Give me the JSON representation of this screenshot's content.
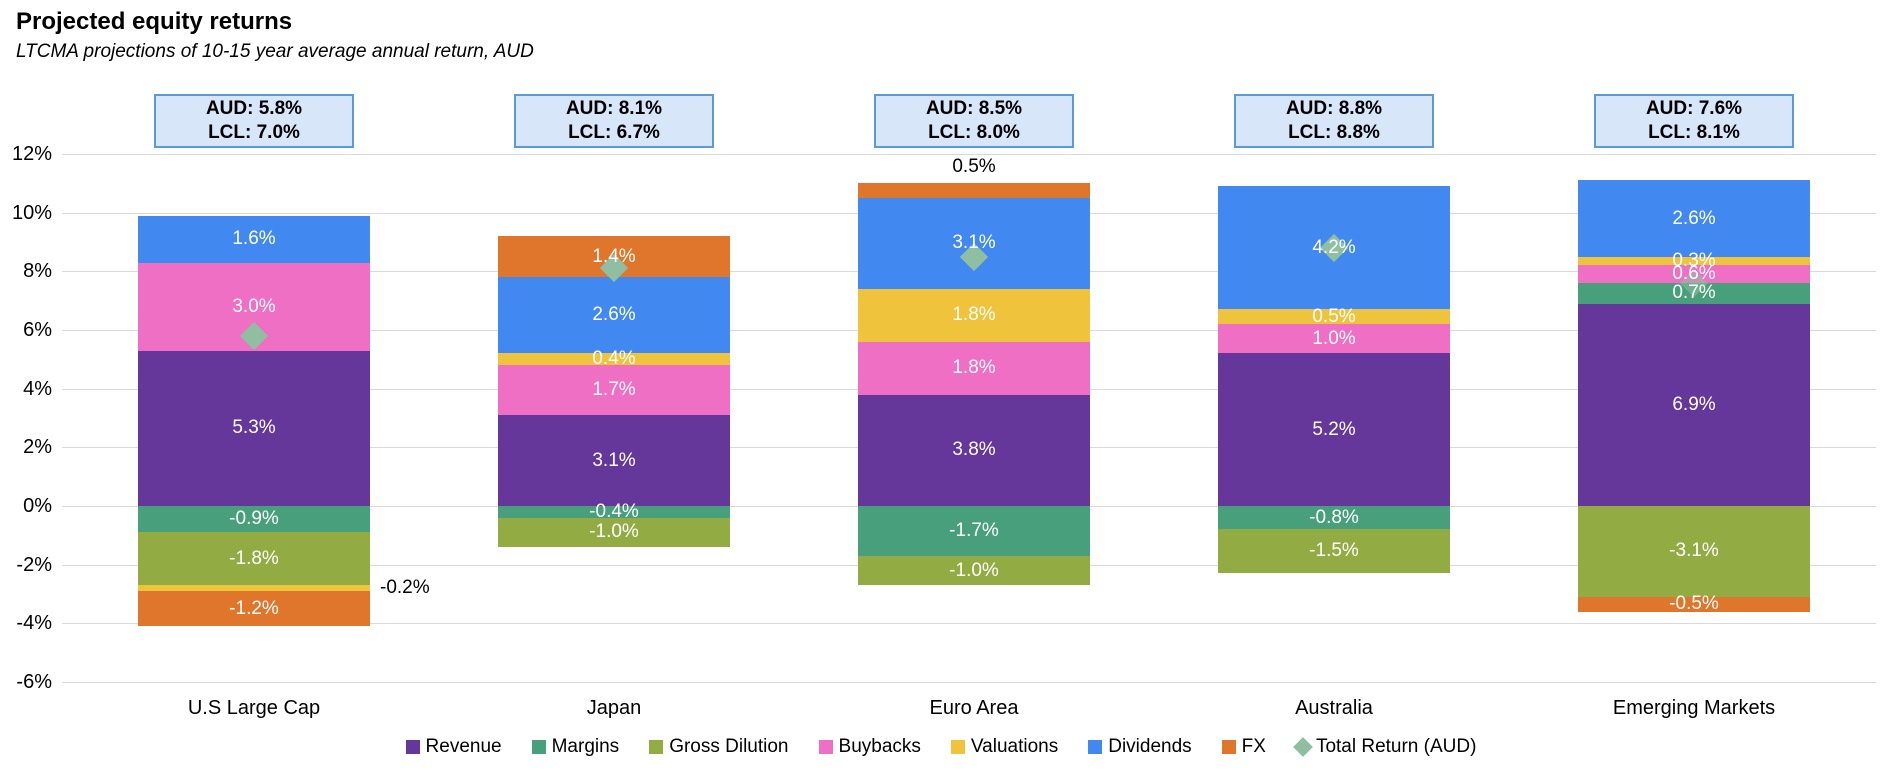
{
  "title": "Projected equity returns",
  "subtitle": "LTCMA projections of 10-15 year average annual return, AUD",
  "colors": {
    "Revenue": "#65379B",
    "Margins": "#47A07B",
    "Gross Dilution": "#92AB43",
    "Buybacks": "#EE6FC3",
    "Valuations": "#F0C33C",
    "Dividends": "#4189F0",
    "FX": "#E0752C",
    "Total Return (AUD)": "#8FBFA0",
    "callout_fill": "#D7E6F8",
    "callout_border": "#5B9BD5",
    "gridline": "#D9D9D9",
    "segment_label": "#FFFFFF",
    "outside_label": "#000000"
  },
  "chart_data": {
    "type": "bar",
    "stacked": true,
    "title": "Projected equity returns",
    "subtitle": "LTCMA projections of 10-15 year average annual return, AUD",
    "categories": [
      "U.S Large Cap",
      "Japan",
      "Euro Area",
      "Australia",
      "Emerging Markets"
    ],
    "series": [
      {
        "name": "Revenue",
        "values": [
          5.3,
          3.1,
          3.8,
          5.2,
          6.9
        ]
      },
      {
        "name": "Margins",
        "values": [
          -0.9,
          -0.4,
          -1.7,
          -0.8,
          0.7
        ]
      },
      {
        "name": "Gross Dilution",
        "values": [
          -1.8,
          -1.0,
          -1.0,
          -1.5,
          -3.1
        ]
      },
      {
        "name": "Buybacks",
        "values": [
          3.0,
          1.7,
          1.8,
          1.0,
          0.6
        ]
      },
      {
        "name": "Valuations",
        "values": [
          -0.2,
          0.4,
          1.8,
          0.5,
          0.3
        ]
      },
      {
        "name": "Dividends",
        "values": [
          1.6,
          2.6,
          3.1,
          4.2,
          2.6
        ]
      },
      {
        "name": "FX",
        "values": [
          -1.2,
          1.4,
          0.5,
          0,
          -0.5
        ]
      }
    ],
    "markers": {
      "name": "Total Return (AUD)",
      "values": [
        5.8,
        8.1,
        8.5,
        8.8,
        7.6
      ]
    },
    "totals_lcl": [
      7.0,
      6.7,
      8.0,
      8.8,
      8.1
    ],
    "callouts": [
      {
        "line1": "AUD: 5.8%",
        "line2": "LCL: 7.0%"
      },
      {
        "line1": "AUD: 8.1%",
        "line2": "LCL: 6.7%"
      },
      {
        "line1": "AUD: 8.5%",
        "line2": "LCL: 8.0%"
      },
      {
        "line1": "AUD: 8.8%",
        "line2": "LCL: 8.8%"
      },
      {
        "line1": "AUD: 7.6%",
        "line2": "LCL: 8.1%"
      }
    ],
    "outside_labels": [
      {
        "category_index": 0,
        "series": "Valuations",
        "position": "right"
      },
      {
        "category_index": 2,
        "series": "FX",
        "position": "above"
      }
    ],
    "y_ticks": [
      "12%",
      "10%",
      "8%",
      "6%",
      "4%",
      "2%",
      "0%",
      "-2%",
      "-4%",
      "-6%"
    ],
    "ylim": [
      -6,
      12
    ],
    "ytick_step": 2,
    "grid": true,
    "legend": [
      "Revenue",
      "Margins",
      "Gross Dilution",
      "Buybacks",
      "Valuations",
      "Dividends",
      "FX",
      "Total Return (AUD)"
    ],
    "legend_position": "bottom"
  }
}
